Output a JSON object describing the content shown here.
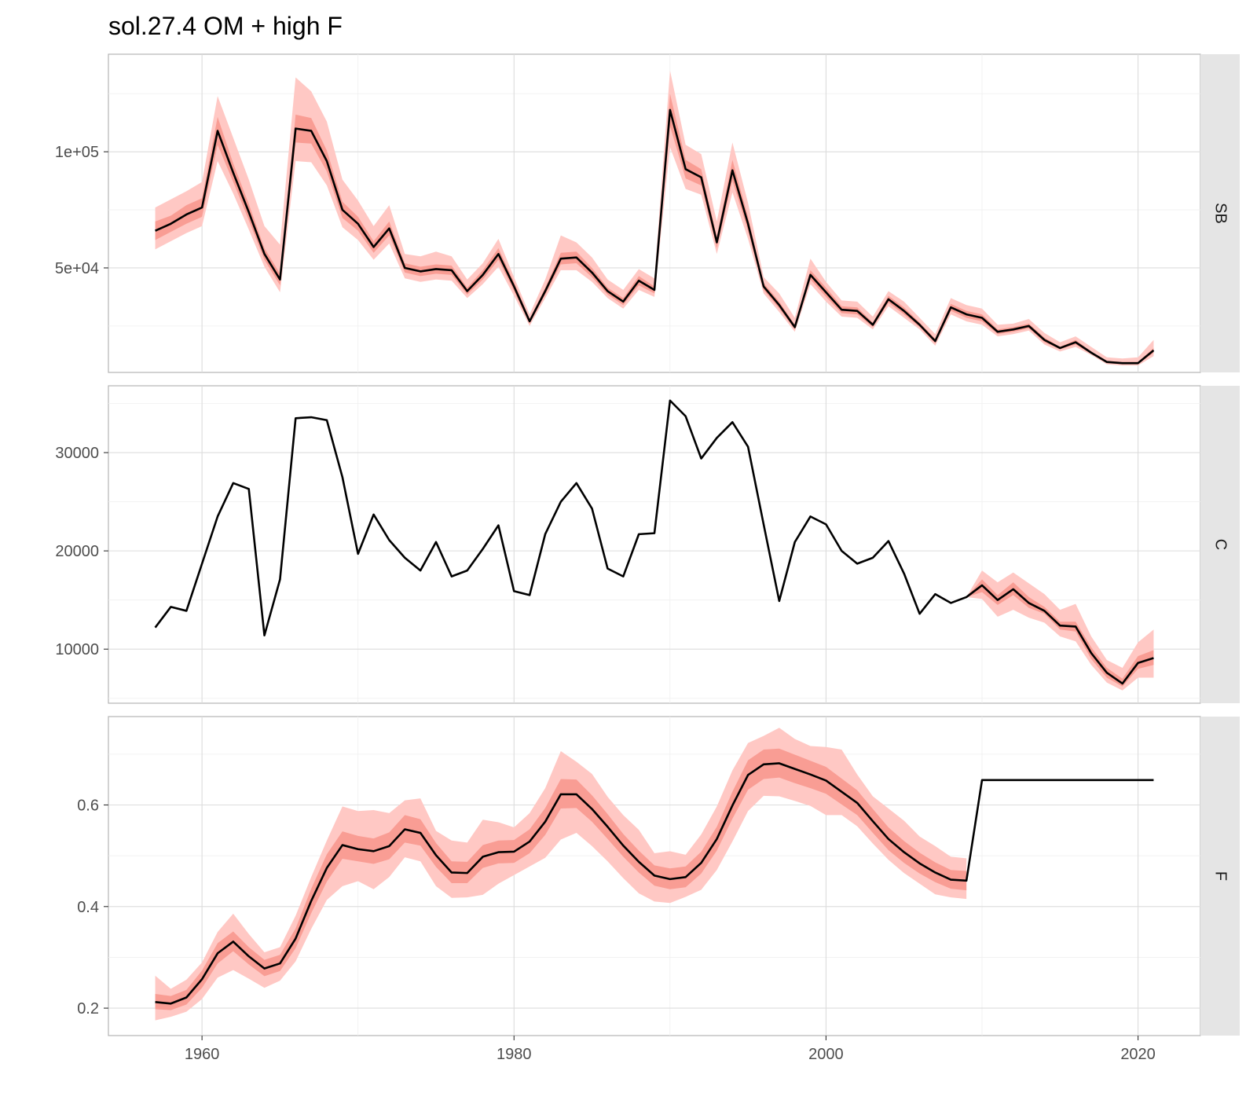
{
  "chart_data": {
    "type": "line",
    "title": "sol.27.4 OM + high F",
    "xlim": [
      1954,
      2024
    ],
    "x_ticks": [
      1960,
      1980,
      2000,
      2020
    ],
    "x_tick_labels": [
      "1960",
      "1980",
      "2000",
      "2020"
    ],
    "grid": true,
    "panels": [
      {
        "strip": "SB",
        "ylim": [
          5000,
          142000
        ],
        "y_ticks": [
          50000,
          100000
        ],
        "y_tick_labels": [
          "5e+04",
          "1e+05"
        ],
        "x": [
          1957,
          1958,
          1959,
          1960,
          1961,
          1962,
          1963,
          1964,
          1965,
          1966,
          1967,
          1968,
          1969,
          1970,
          1971,
          1972,
          1973,
          1974,
          1975,
          1976,
          1977,
          1978,
          1979,
          1980,
          1981,
          1982,
          1983,
          1984,
          1985,
          1986,
          1987,
          1988,
          1989,
          1990,
          1991,
          1992,
          1993,
          1994,
          1995,
          1996,
          1997,
          1998,
          1999,
          2000,
          2001,
          2002,
          2003,
          2004,
          2005,
          2006,
          2007,
          2008,
          2009,
          2010,
          2011,
          2012,
          2013,
          2014,
          2015,
          2016,
          2017,
          2018,
          2019,
          2020,
          2021
        ],
        "median": [
          66000,
          69000,
          73000,
          76000,
          109000,
          91000,
          74000,
          56000,
          45000,
          110000,
          109000,
          96000,
          75000,
          69000,
          59000,
          67000,
          50000,
          48500,
          49500,
          49000,
          40000,
          47000,
          56000,
          42000,
          27000,
          40000,
          54000,
          54500,
          48000,
          40000,
          35500,
          44500,
          40500,
          118000,
          92500,
          89000,
          61000,
          92000,
          69000,
          42000,
          34000,
          24500,
          47000,
          39500,
          32000,
          31500,
          25500,
          36500,
          31500,
          25500,
          18500,
          33000,
          30000,
          28500,
          22500,
          23500,
          25000,
          19000,
          15500,
          18000,
          13500,
          9500,
          9000,
          9000,
          14500
        ],
        "inner_lo": [
          62000,
          65500,
          69000,
          72000,
          103000,
          87000,
          70500,
          53500,
          42500,
          104000,
          103500,
          91500,
          71500,
          66000,
          56500,
          64000,
          48000,
          46500,
          47500,
          47000,
          38500,
          45000,
          53500,
          40000,
          26000,
          38500,
          51500,
          52000,
          46000,
          38500,
          34000,
          42500,
          39000,
          111000,
          88500,
          85500,
          58500,
          87500,
          66000,
          40500,
          32500,
          23500,
          45000,
          37500,
          30500,
          30000,
          24500,
          35000,
          30000,
          24500,
          17500,
          31500,
          28500,
          27000,
          21500,
          22500,
          24000,
          18000,
          15000,
          17000,
          13000,
          9000,
          8500,
          8500,
          13500
        ],
        "inner_hi": [
          70000,
          72500,
          77000,
          80000,
          115000,
          95000,
          77500,
          58500,
          47500,
          116000,
          114500,
          100500,
          78500,
          72000,
          61500,
          70000,
          52000,
          50500,
          51500,
          51000,
          41500,
          49000,
          58500,
          44000,
          28000,
          41500,
          56500,
          57000,
          50000,
          41500,
          37000,
          46500,
          42000,
          125000,
          96500,
          92500,
          63500,
          96500,
          72000,
          43500,
          35500,
          25500,
          49000,
          41500,
          33500,
          33000,
          26500,
          38000,
          33000,
          26500,
          19500,
          34500,
          31500,
          30000,
          23500,
          24500,
          26000,
          20000,
          16000,
          19000,
          14000,
          10000,
          9500,
          9500,
          15500
        ],
        "outer_lo": [
          58000,
          61500,
          65000,
          68000,
          96000,
          82000,
          66500,
          50500,
          39500,
          96000,
          95500,
          85500,
          67500,
          62000,
          53500,
          60500,
          45500,
          44000,
          45000,
          44500,
          37000,
          43000,
          50500,
          38000,
          25000,
          37000,
          49000,
          49000,
          44000,
          37000,
          32500,
          40500,
          37500,
          102000,
          84000,
          81500,
          56000,
          82500,
          62500,
          39000,
          31000,
          22500,
          43000,
          35500,
          29000,
          28500,
          23500,
          33500,
          28500,
          23500,
          16500,
          30000,
          27000,
          25500,
          20500,
          21500,
          23000,
          17000,
          14000,
          16000,
          12500,
          8500,
          8000,
          8000,
          12000
        ],
        "outer_hi": [
          76000,
          79500,
          83000,
          87000,
          124000,
          106000,
          88000,
          68000,
          60000,
          132000,
          126000,
          113000,
          88000,
          79000,
          68000,
          77000,
          56000,
          55000,
          57000,
          55000,
          45000,
          52000,
          62500,
          46000,
          30000,
          45000,
          64000,
          61000,
          54500,
          45000,
          40500,
          49500,
          45500,
          135000,
          103000,
          99000,
          70000,
          104000,
          78000,
          46000,
          39000,
          28500,
          54000,
          44000,
          36000,
          35500,
          29000,
          40000,
          35500,
          28500,
          21500,
          37000,
          34000,
          32500,
          25500,
          26000,
          28000,
          22000,
          18000,
          20500,
          16000,
          11500,
          11000,
          11500,
          19000
        ]
      },
      {
        "strip": "C",
        "ylim": [
          4500,
          36800
        ],
        "y_ticks": [
          10000,
          20000,
          30000
        ],
        "y_tick_labels": [
          "10000",
          "20000",
          "30000"
        ],
        "x": [
          1957,
          1958,
          1959,
          1960,
          1961,
          1962,
          1963,
          1964,
          1965,
          1966,
          1967,
          1968,
          1969,
          1970,
          1971,
          1972,
          1973,
          1974,
          1975,
          1976,
          1977,
          1978,
          1979,
          1980,
          1981,
          1982,
          1983,
          1984,
          1985,
          1986,
          1987,
          1988,
          1989,
          1990,
          1991,
          1992,
          1993,
          1994,
          1995,
          1996,
          1997,
          1998,
          1999,
          2000,
          2001,
          2002,
          2003,
          2004,
          2005,
          2006,
          2007,
          2008,
          2009,
          2010,
          2011,
          2012,
          2013,
          2014,
          2015,
          2016,
          2017,
          2018,
          2019,
          2020,
          2021
        ],
        "median": [
          12200,
          14300,
          13900,
          18700,
          23500,
          26900,
          26300,
          11400,
          17100,
          33500,
          33600,
          33300,
          27500,
          19700,
          23700,
          21100,
          19300,
          18000,
          20900,
          17400,
          18000,
          20200,
          22600,
          15900,
          15500,
          21700,
          25000,
          26900,
          24300,
          18200,
          17400,
          21700,
          21800,
          35300,
          33700,
          29400,
          31500,
          33100,
          30600,
          22700,
          14900,
          20900,
          23500,
          22700,
          20000,
          18700,
          19300,
          21000,
          17700,
          13600,
          15600,
          14700,
          15300,
          16500,
          15000,
          16100,
          14700,
          13900,
          12400,
          12300,
          9600,
          7600,
          6500,
          8600,
          9100
        ],
        "band_start": 2009,
        "inner_lo": [
          15300,
          15800,
          14500,
          15500,
          14200,
          13600,
          12000,
          11800,
          9000,
          7100,
          6200,
          8000,
          8400
        ],
        "inner_hi": [
          15300,
          17100,
          15500,
          16800,
          15300,
          14300,
          12800,
          12800,
          10200,
          8100,
          7000,
          9300,
          9900
        ],
        "outer_lo": [
          15300,
          15100,
          13300,
          14000,
          13200,
          12700,
          11300,
          10800,
          8400,
          6600,
          5800,
          7100,
          7100
        ],
        "outer_hi": [
          15300,
          18000,
          16800,
          17800,
          16700,
          15600,
          14000,
          14600,
          11300,
          8900,
          8100,
          10700,
          12000
        ]
      },
      {
        "strip": "F",
        "ylim": [
          0.146,
          0.774
        ],
        "y_ticks": [
          0.2,
          0.4,
          0.6
        ],
        "y_tick_labels": [
          "0.2",
          "0.4",
          "0.6"
        ],
        "x": [
          1957,
          1958,
          1959,
          1960,
          1961,
          1962,
          1963,
          1964,
          1965,
          1966,
          1967,
          1968,
          1969,
          1970,
          1971,
          1972,
          1973,
          1974,
          1975,
          1976,
          1977,
          1978,
          1979,
          1980,
          1981,
          1982,
          1983,
          1984,
          1985,
          1986,
          1987,
          1988,
          1989,
          1990,
          1991,
          1992,
          1993,
          1994,
          1995,
          1996,
          1997,
          1998,
          1999,
          2000,
          2001,
          2002,
          2003,
          2004,
          2005,
          2006,
          2007,
          2008,
          2009,
          2010,
          2011,
          2012,
          2013,
          2014,
          2015,
          2016,
          2017,
          2018,
          2019,
          2020,
          2021
        ],
        "median": [
          0.212,
          0.209,
          0.221,
          0.257,
          0.308,
          0.331,
          0.302,
          0.278,
          0.288,
          0.337,
          0.411,
          0.476,
          0.521,
          0.513,
          0.509,
          0.519,
          0.552,
          0.545,
          0.501,
          0.467,
          0.466,
          0.498,
          0.507,
          0.508,
          0.528,
          0.567,
          0.621,
          0.621,
          0.592,
          0.557,
          0.52,
          0.488,
          0.461,
          0.454,
          0.458,
          0.486,
          0.533,
          0.599,
          0.659,
          0.68,
          0.682,
          0.671,
          0.66,
          0.648,
          0.626,
          0.604,
          0.568,
          0.533,
          0.507,
          0.485,
          0.467,
          0.453,
          0.451,
          0.649,
          0.649,
          0.649,
          0.649,
          0.649,
          0.649,
          0.649,
          0.649,
          0.649,
          0.649,
          0.649,
          0.649
        ],
        "band_end": 2009,
        "inner_lo": [
          0.198,
          0.196,
          0.207,
          0.24,
          0.288,
          0.312,
          0.286,
          0.263,
          0.273,
          0.318,
          0.387,
          0.449,
          0.494,
          0.489,
          0.484,
          0.493,
          0.526,
          0.52,
          0.478,
          0.446,
          0.446,
          0.476,
          0.485,
          0.486,
          0.505,
          0.541,
          0.593,
          0.594,
          0.567,
          0.533,
          0.498,
          0.467,
          0.441,
          0.434,
          0.438,
          0.465,
          0.51,
          0.573,
          0.63,
          0.651,
          0.654,
          0.643,
          0.633,
          0.622,
          0.601,
          0.58,
          0.545,
          0.511,
          0.486,
          0.465,
          0.448,
          0.435,
          0.432
        ],
        "inner_hi": [
          0.228,
          0.224,
          0.236,
          0.274,
          0.328,
          0.351,
          0.32,
          0.295,
          0.305,
          0.357,
          0.435,
          0.503,
          0.548,
          0.539,
          0.534,
          0.546,
          0.58,
          0.572,
          0.525,
          0.489,
          0.488,
          0.521,
          0.53,
          0.531,
          0.552,
          0.594,
          0.651,
          0.65,
          0.619,
          0.582,
          0.543,
          0.51,
          0.481,
          0.475,
          0.479,
          0.508,
          0.557,
          0.626,
          0.688,
          0.709,
          0.711,
          0.699,
          0.687,
          0.675,
          0.652,
          0.629,
          0.592,
          0.556,
          0.529,
          0.506,
          0.487,
          0.472,
          0.47
        ],
        "outer_lo": [
          0.176,
          0.183,
          0.193,
          0.218,
          0.26,
          0.275,
          0.258,
          0.24,
          0.254,
          0.292,
          0.356,
          0.413,
          0.44,
          0.45,
          0.434,
          0.458,
          0.497,
          0.489,
          0.44,
          0.417,
          0.418,
          0.423,
          0.445,
          0.462,
          0.479,
          0.496,
          0.532,
          0.545,
          0.519,
          0.489,
          0.456,
          0.426,
          0.41,
          0.407,
          0.419,
          0.433,
          0.472,
          0.528,
          0.588,
          0.618,
          0.617,
          0.608,
          0.598,
          0.58,
          0.58,
          0.558,
          0.524,
          0.492,
          0.466,
          0.445,
          0.424,
          0.418,
          0.415
        ],
        "outer_hi": [
          0.264,
          0.238,
          0.256,
          0.29,
          0.35,
          0.386,
          0.346,
          0.31,
          0.32,
          0.382,
          0.458,
          0.53,
          0.597,
          0.588,
          0.59,
          0.584,
          0.609,
          0.613,
          0.549,
          0.53,
          0.526,
          0.571,
          0.566,
          0.556,
          0.584,
          0.633,
          0.706,
          0.685,
          0.661,
          0.616,
          0.58,
          0.551,
          0.505,
          0.509,
          0.502,
          0.542,
          0.597,
          0.668,
          0.722,
          0.736,
          0.752,
          0.73,
          0.716,
          0.714,
          0.709,
          0.66,
          0.617,
          0.593,
          0.569,
          0.538,
          0.519,
          0.498,
          0.495
        ]
      }
    ]
  }
}
